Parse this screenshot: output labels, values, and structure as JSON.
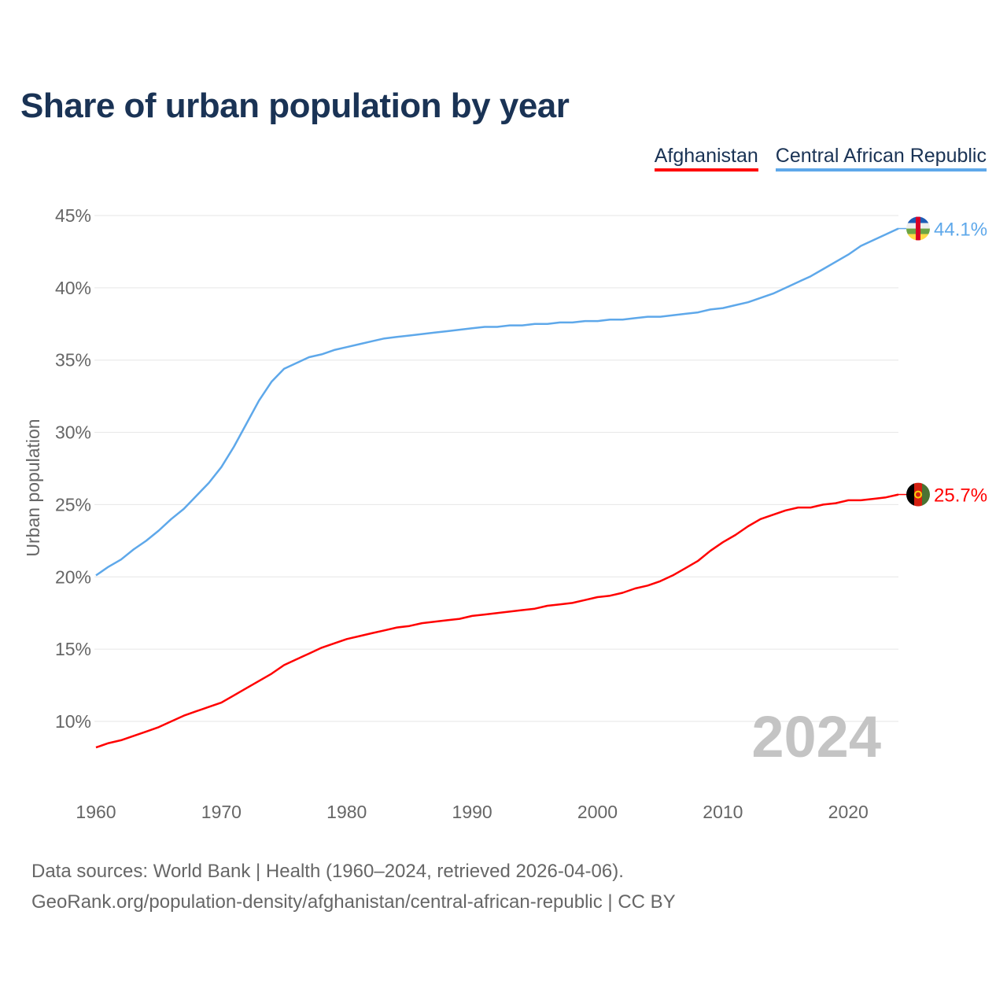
{
  "chart_data": {
    "type": "line",
    "title": "Share of urban population by year",
    "xlabel": "",
    "ylabel": "Urban population",
    "xlim": [
      1960,
      2024
    ],
    "ylim": [
      10,
      45
    ],
    "yticks": [
      10,
      15,
      20,
      25,
      30,
      35,
      40,
      45
    ],
    "ytick_labels": [
      "10%",
      "15%",
      "20%",
      "25%",
      "30%",
      "35%",
      "40%",
      "45%"
    ],
    "xticks": [
      1960,
      1970,
      1980,
      1990,
      2000,
      2010,
      2020
    ],
    "xtick_labels": [
      "1960",
      "1970",
      "1980",
      "1990",
      "2000",
      "2010",
      "2020"
    ],
    "grid": true,
    "legend_position": "top-right",
    "year_watermark": "2024",
    "x": [
      1960,
      1961,
      1962,
      1963,
      1964,
      1965,
      1966,
      1967,
      1968,
      1969,
      1970,
      1971,
      1972,
      1973,
      1974,
      1975,
      1976,
      1977,
      1978,
      1979,
      1980,
      1981,
      1982,
      1983,
      1984,
      1985,
      1986,
      1987,
      1988,
      1989,
      1990,
      1991,
      1992,
      1993,
      1994,
      1995,
      1996,
      1997,
      1998,
      1999,
      2000,
      2001,
      2002,
      2003,
      2004,
      2005,
      2006,
      2007,
      2008,
      2009,
      2010,
      2011,
      2012,
      2013,
      2014,
      2015,
      2016,
      2017,
      2018,
      2019,
      2020,
      2021,
      2022,
      2023,
      2024
    ],
    "series": [
      {
        "name": "Afghanistan",
        "color": "#ff0000",
        "end_label": "25.7%",
        "flag": "afghanistan-flag",
        "values": [
          8.2,
          8.5,
          8.7,
          9.0,
          9.3,
          9.6,
          10.0,
          10.4,
          10.7,
          11.0,
          11.3,
          11.8,
          12.3,
          12.8,
          13.3,
          13.9,
          14.3,
          14.7,
          15.1,
          15.4,
          15.7,
          15.9,
          16.1,
          16.3,
          16.5,
          16.6,
          16.8,
          16.9,
          17.0,
          17.1,
          17.3,
          17.4,
          17.5,
          17.6,
          17.7,
          17.8,
          18.0,
          18.1,
          18.2,
          18.4,
          18.6,
          18.7,
          18.9,
          19.2,
          19.4,
          19.7,
          20.1,
          20.6,
          21.1,
          21.8,
          22.4,
          22.9,
          23.5,
          24.0,
          24.3,
          24.6,
          24.8,
          24.8,
          25.0,
          25.1,
          25.3,
          25.3,
          25.4,
          25.5,
          25.7
        ]
      },
      {
        "name": "Central African Republic",
        "color": "#5ea8ea",
        "end_label": "44.1%",
        "flag": "central-african-republic-flag",
        "values": [
          20.1,
          20.7,
          21.2,
          21.9,
          22.5,
          23.2,
          24.0,
          24.7,
          25.6,
          26.5,
          27.6,
          29.0,
          30.6,
          32.2,
          33.5,
          34.4,
          34.8,
          35.2,
          35.4,
          35.7,
          35.9,
          36.1,
          36.3,
          36.5,
          36.6,
          36.7,
          36.8,
          36.9,
          37.0,
          37.1,
          37.2,
          37.3,
          37.3,
          37.4,
          37.4,
          37.5,
          37.5,
          37.6,
          37.6,
          37.7,
          37.7,
          37.8,
          37.8,
          37.9,
          38.0,
          38.0,
          38.1,
          38.2,
          38.3,
          38.5,
          38.6,
          38.8,
          39.0,
          39.3,
          39.6,
          40.0,
          40.4,
          40.8,
          41.3,
          41.8,
          42.3,
          42.9,
          43.3,
          43.7,
          44.1
        ]
      }
    ]
  },
  "footer": {
    "line1": "Data sources: World Bank | Health (1960–2024, retrieved 2026-04-06).",
    "line2": "GeoRank.org/population-density/afghanistan/central-african-republic | CC BY"
  }
}
